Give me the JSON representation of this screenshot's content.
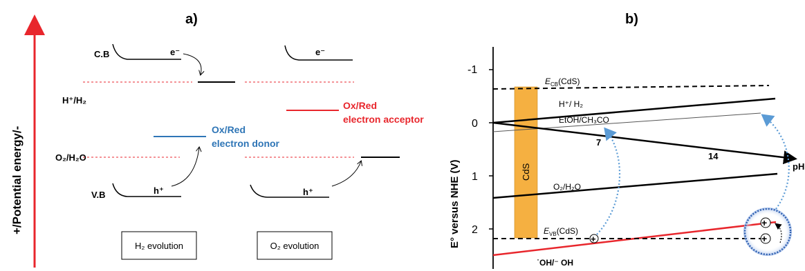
{
  "panel_a": {
    "letter": "a)",
    "y_axis_label": "+/Potential energy/-",
    "cb_label": "C.B",
    "h_label": "H⁺/H₂",
    "o_label": "O₂/H₂O",
    "vb_label": "V.B",
    "electron": "e⁻",
    "hole": "h⁺",
    "donor_line1": "Ox/Red",
    "donor_line2": "electron donor",
    "acceptor_line1": "Ox/Red",
    "acceptor_line2": "electron acceptor",
    "h2_box": "H₂ evolution",
    "o2_box": "O₂ evolution",
    "colors": {
      "arrow_red": "#e8262c",
      "dashed_red": "#e8262c",
      "donor_blue": "#2e75b6",
      "acceptor_red": "#e8262c"
    }
  },
  "panel_b": {
    "letter": "b)",
    "y_axis_label": "E° versus NHE (V)",
    "x_axis_label": "pH",
    "y_ticks": [
      "-1",
      "0",
      "1",
      "2"
    ],
    "x_ticks": [
      "7",
      "14"
    ],
    "ecb_label": "E",
    "ecb_sub": "CB",
    "ecb_suffix": "(CdS)",
    "evb_label": "E",
    "evb_sub": "VB",
    "evb_suffix": "(CdS)",
    "cds_label": "CdS",
    "h_label": "H⁺/ H₂",
    "etoh_label": "EtOH/CH₃CO",
    "o2_label": "O₂/H₂O",
    "oh_label": "˙OH/⁻ OH",
    "plus": "+",
    "colors": {
      "cds_bar": "#f5b041",
      "oh_line": "#e8262c",
      "blue_arrow": "#5b9bd5",
      "circle": "#2e5fb0"
    }
  }
}
